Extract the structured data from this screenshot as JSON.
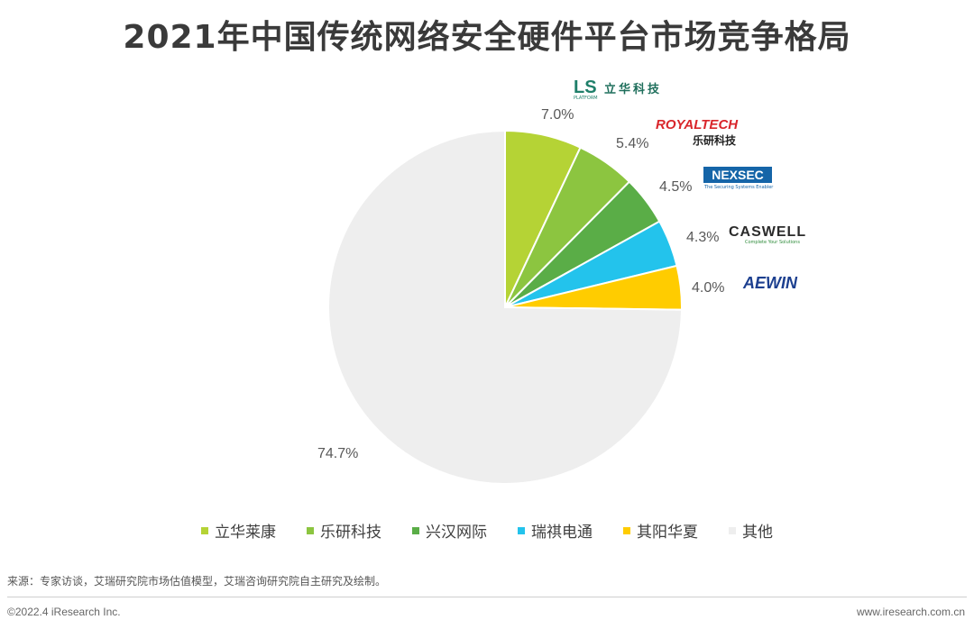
{
  "title": "2021年中国传统网络安全硬件平台市场竞争格局",
  "chart_data": {
    "type": "pie",
    "title": "2021年中国传统网络安全硬件平台市场竞争格局",
    "categories": [
      "立华莱康",
      "乐研科技",
      "兴汉网际",
      "瑞祺电通",
      "其阳华夏",
      "其他"
    ],
    "values": [
      7.0,
      5.4,
      4.5,
      4.3,
      4.0,
      74.7
    ],
    "labels": [
      "7.0%",
      "5.4%",
      "4.5%",
      "4.3%",
      "4.0%",
      "74.7%"
    ],
    "colors": [
      "#b5d335",
      "#8cc540",
      "#5aad47",
      "#23c3ec",
      "#ffcc00",
      "#eeeeee"
    ],
    "legend_position": "bottom"
  },
  "logos": {
    "ls": {
      "letters": "LS",
      "sub": "PLATFORM",
      "cn": "立华科技"
    },
    "royaltech": {
      "name": "ROYALTECH",
      "cn": "乐研科技"
    },
    "nexsec": {
      "name": "NEXSEC",
      "sub": "The Securing Systems Enabler"
    },
    "caswell": {
      "name": "CASWELL",
      "sub": "Complete Your Solutions"
    },
    "aewin": {
      "name": "AEWIN"
    }
  },
  "footer": {
    "source": "来源：专家访谈，艾瑞研究院市场估值模型，艾瑞咨询研究院自主研究及绘制。",
    "copyright": "©2022.4 iResearch Inc.",
    "website": "www.iresearch.com.cn"
  }
}
